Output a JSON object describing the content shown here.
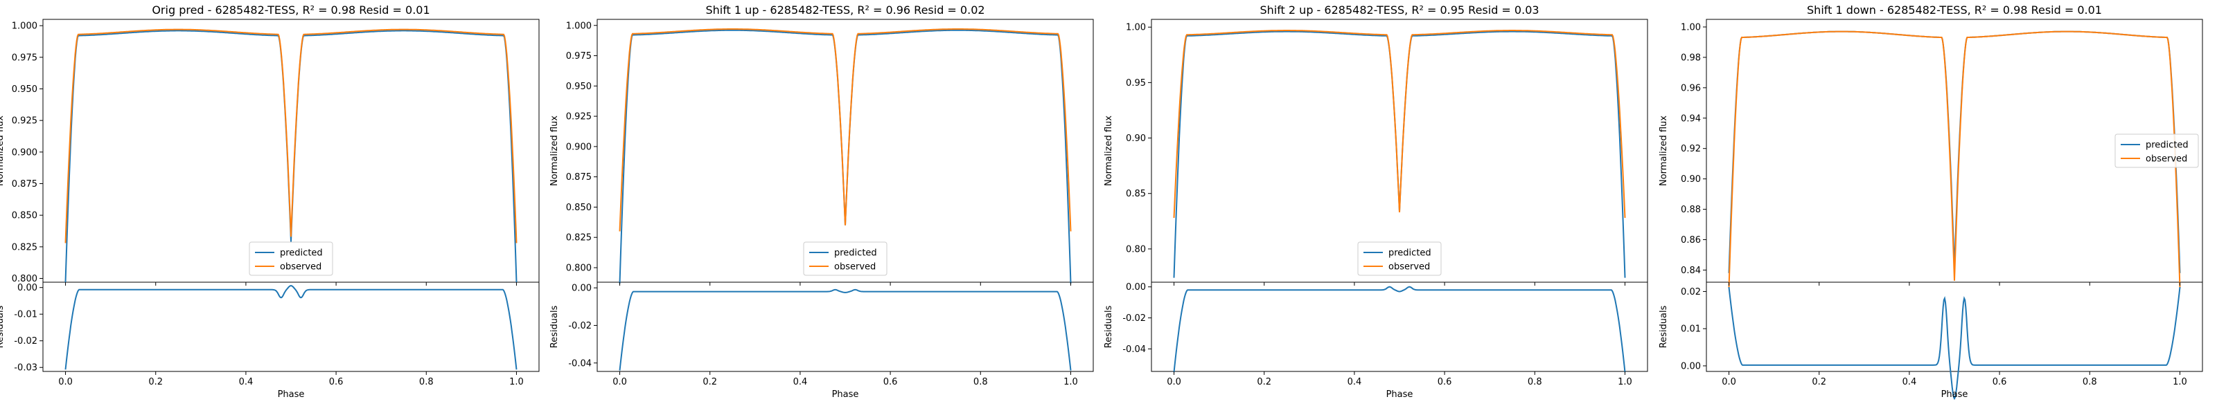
{
  "colors": {
    "predicted": "#1f77b4",
    "observed": "#ff7f0e"
  },
  "chart_data": [
    {
      "type": "line",
      "title": "Orig pred - 6285482-TESS, R² = 0.98 Resid = 0.01",
      "xlabel": "Phase",
      "ylabel": "Normalized flux",
      "ylabel_resid": "Residuals",
      "xlim": [
        -0.05,
        1.05
      ],
      "xticks": [
        "0.0",
        "0.2",
        "0.4",
        "0.6",
        "0.8",
        "1.0"
      ],
      "ylim": [
        0.797,
        1.005
      ],
      "yticks": [
        "0.800",
        "0.825",
        "0.850",
        "0.875",
        "0.900",
        "0.925",
        "0.950",
        "0.975",
        "1.000"
      ],
      "resid_ylim": [
        -0.0315,
        0.002
      ],
      "resid_yticks": [
        "0.00",
        "-0.01",
        "-0.02",
        "-0.03"
      ],
      "legend": [
        "predicted",
        "observed"
      ],
      "legend_loc": "lower center",
      "model": {
        "pred": {
          "depth1": 0.195,
          "depth2": 0.163,
          "oot": 0.996
        },
        "obs": {
          "depth1": 0.165,
          "depth2": 0.16,
          "oot": 0.997
        },
        "resid": {
          "edge": -0.03,
          "eclipse2": -0.003,
          "oot": -0.0008
        }
      }
    },
    {
      "type": "line",
      "title": "Shift 1 up - 6285482-TESS, R² = 0.96 Resid = 0.02",
      "xlabel": "Phase",
      "ylabel": "Normalized flux",
      "ylabel_resid": "Residuals",
      "xlim": [
        -0.05,
        1.05
      ],
      "xticks": [
        "0.0",
        "0.2",
        "0.4",
        "0.6",
        "0.8",
        "1.0"
      ],
      "ylim": [
        0.788,
        1.005
      ],
      "yticks": [
        "0.800",
        "0.825",
        "0.850",
        "0.875",
        "0.900",
        "0.925",
        "0.950",
        "0.975",
        "1.000"
      ],
      "resid_ylim": [
        -0.0445,
        0.003
      ],
      "resid_yticks": [
        "0.00",
        "-0.02",
        "-0.04"
      ],
      "legend": [
        "predicted",
        "observed"
      ],
      "legend_loc": "lower center",
      "model": {
        "pred": {
          "depth1": 0.205,
          "depth2": 0.157,
          "oot": 0.996
        },
        "obs": {
          "depth1": 0.163,
          "depth2": 0.158,
          "oot": 0.997
        },
        "resid": {
          "edge": -0.042,
          "eclipse2": 0.001,
          "oot": -0.002
        }
      }
    },
    {
      "type": "line",
      "title": "Shift 2 up - 6285482-TESS, R² = 0.95 Resid = 0.03",
      "xlabel": "Phase",
      "ylabel": "Normalized flux",
      "ylabel_resid": "Residuals",
      "xlim": [
        -0.05,
        1.05
      ],
      "xticks": [
        "0.0",
        "0.2",
        "0.4",
        "0.6",
        "0.8",
        "1.0"
      ],
      "ylim": [
        0.77,
        1.007
      ],
      "yticks": [
        "0.80",
        "0.85",
        "0.90",
        "0.95",
        "1.00"
      ],
      "resid_ylim": [
        -0.0545,
        0.003
      ],
      "resid_yticks": [
        "0.00",
        "-0.02",
        "-0.04"
      ],
      "legend": [
        "predicted",
        "observed"
      ],
      "legend_loc": "lower center",
      "model": {
        "pred": {
          "depth1": 0.218,
          "depth2": 0.158,
          "oot": 0.996
        },
        "obs": {
          "depth1": 0.165,
          "depth2": 0.16,
          "oot": 0.997
        },
        "resid": {
          "edge": -0.053,
          "eclipse2": 0.002,
          "oot": -0.002
        }
      }
    },
    {
      "type": "line",
      "title": "Shift 1 down - 6285482-TESS, R² = 0.98 Resid = 0.01",
      "xlabel": "Phase",
      "ylabel": "Normalized flux",
      "ylabel_resid": "Residuals",
      "xlim": [
        -0.05,
        1.05
      ],
      "xticks": [
        "0.0",
        "0.2",
        "0.4",
        "0.6",
        "0.8",
        "1.0"
      ],
      "ylim": [
        0.832,
        1.005
      ],
      "yticks": [
        "0.84",
        "0.86",
        "0.88",
        "0.90",
        "0.92",
        "0.94",
        "0.96",
        "0.98",
        "1.00"
      ],
      "resid_ylim": [
        -0.0015,
        0.0225
      ],
      "resid_yticks": [
        "0.02",
        "0.01",
        "0.00"
      ],
      "legend": [
        "predicted",
        "observed"
      ],
      "legend_loc": "center right",
      "model": {
        "pred": {
          "depth1": 0.155,
          "depth2": 0.152,
          "oot": 0.997
        },
        "obs": {
          "depth1": 0.165,
          "depth2": 0.16,
          "oot": 0.997
        },
        "resid": {
          "edge": 0.021,
          "eclipse2": 0.018,
          "oot": 0.0002
        }
      }
    }
  ]
}
